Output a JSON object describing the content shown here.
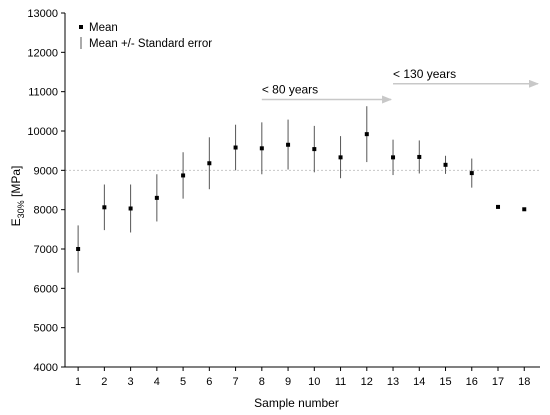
{
  "chart_data": {
    "type": "scatter",
    "xlabel": "Sample number",
    "ylabel_main": "E",
    "ylabel_sub": "30%",
    "ylabel_unit": " [MPa]",
    "xlim": [
      0.5,
      18.6
    ],
    "ylim": [
      4000,
      13000
    ],
    "x_ticks": [
      1,
      2,
      3,
      4,
      5,
      6,
      7,
      8,
      9,
      10,
      11,
      12,
      13,
      14,
      15,
      16,
      17,
      18
    ],
    "y_ticks": [
      4000,
      5000,
      6000,
      7000,
      8000,
      9000,
      10000,
      11000,
      12000,
      13000
    ],
    "grid": false,
    "legend": {
      "placement": "top-left",
      "entries": [
        "Mean",
        "Mean +/- Standard error"
      ]
    },
    "series": [
      {
        "name": "Mean",
        "x": [
          1,
          2,
          3,
          4,
          5,
          6,
          7,
          8,
          9,
          10,
          11,
          12,
          13,
          14,
          15,
          16,
          17,
          18
        ],
        "y": [
          7000,
          8060,
          8030,
          8300,
          8870,
          9180,
          9580,
          9560,
          9650,
          9540,
          9330,
          9920,
          9330,
          9340,
          9140,
          8930,
          8070,
          8010
        ],
        "lower": [
          6400,
          7480,
          7420,
          7700,
          8280,
          8520,
          9000,
          8900,
          9020,
          8950,
          8800,
          9210,
          8880,
          8920,
          8910,
          8560,
          8020,
          7980
        ],
        "upper": [
          7600,
          8640,
          8640,
          8900,
          9460,
          9840,
          10160,
          10220,
          10290,
          10130,
          9870,
          10630,
          9780,
          9760,
          9370,
          9300,
          8120,
          8040
        ]
      }
    ],
    "reference_line": {
      "y": 9000,
      "style": "dotted"
    },
    "annotations": [
      {
        "label": "< 80 years",
        "x_start": 8,
        "x_end": 13,
        "y": 10800
      },
      {
        "label": "< 130 years",
        "x_start": 13,
        "x_end": 18.6,
        "y": 11200
      }
    ],
    "colors": {
      "marker": "#000000",
      "error_bar": "#555555",
      "arrow": "#c8c8c8",
      "reference_line": "#c8c8c8",
      "axis": "#000000"
    }
  }
}
